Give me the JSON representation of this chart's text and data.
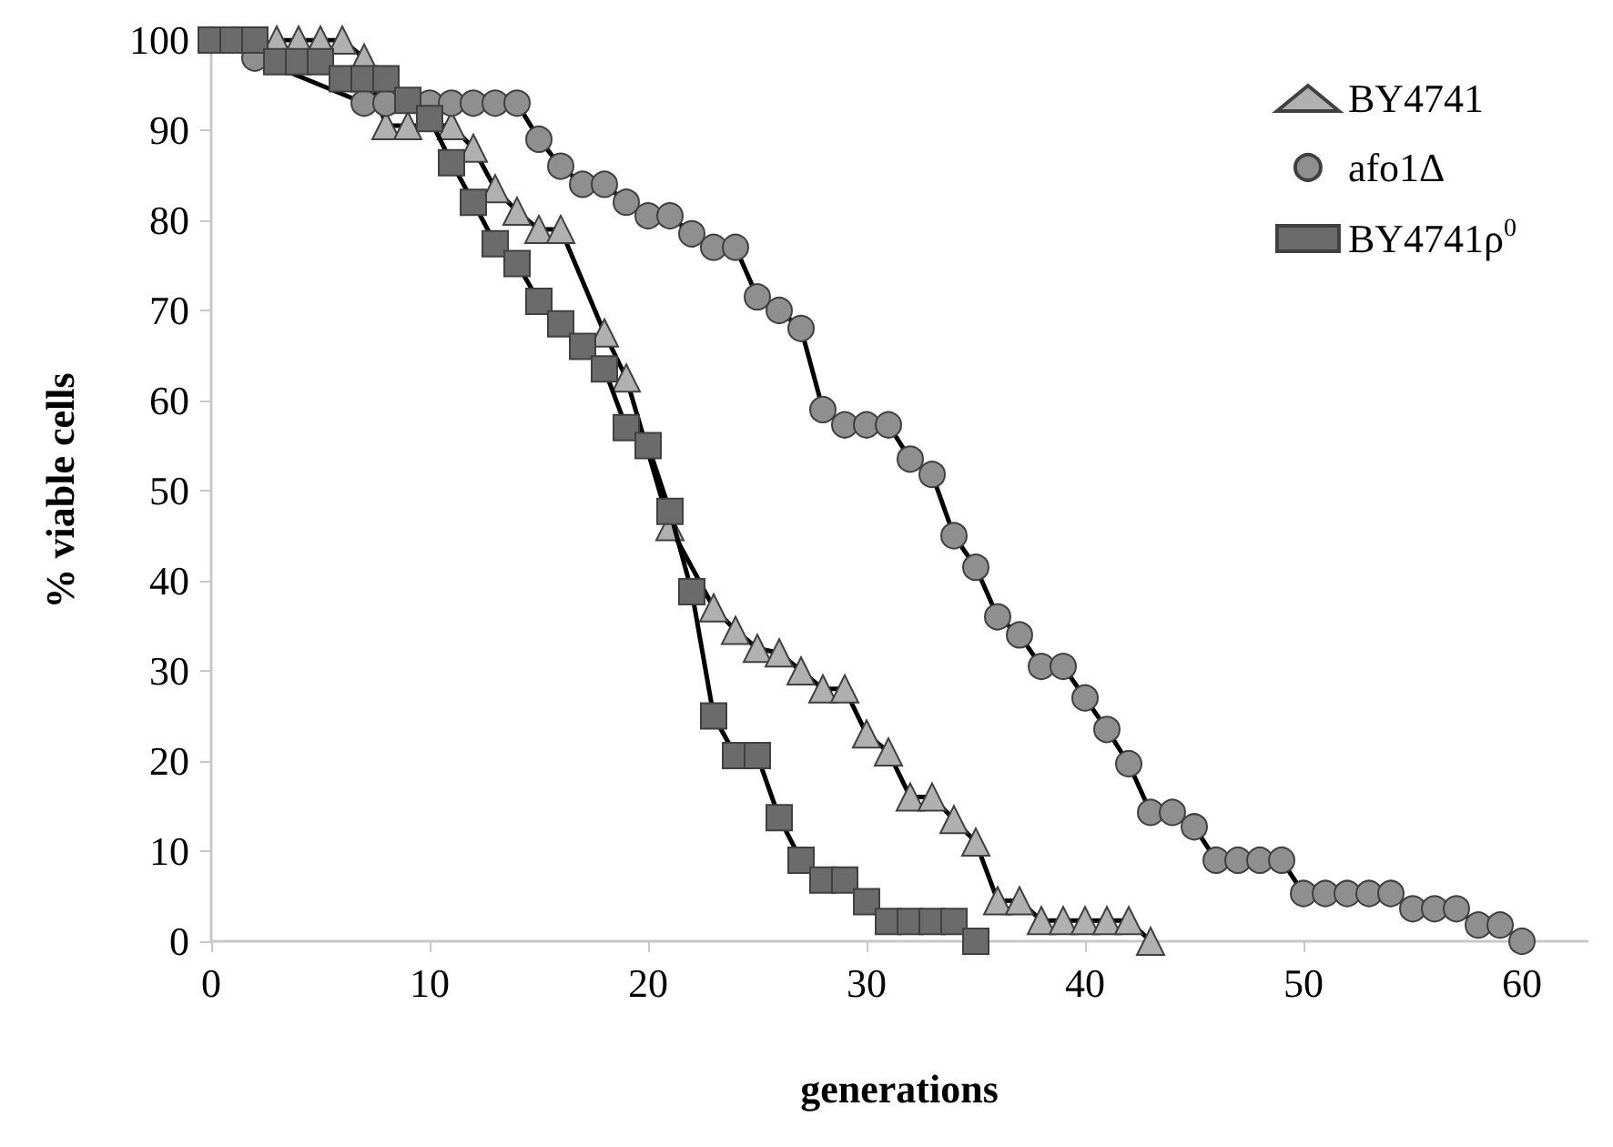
{
  "chart_data": {
    "type": "line",
    "xlabel": "generations",
    "ylabel": "% viable cells",
    "xlim": [
      0,
      63
    ],
    "xticks": [
      0,
      10,
      20,
      30,
      40,
      50,
      60
    ],
    "ylim": [
      0,
      100
    ],
    "yticks": [
      0,
      10,
      20,
      30,
      40,
      50,
      60,
      70,
      80,
      90,
      100
    ],
    "grid": false,
    "legend": "top right",
    "line_style": "solid",
    "series": [
      {
        "name": "BY4741",
        "color": "#b0b0b0",
        "marker": "triangle",
        "x": [
          3,
          4,
          5,
          6,
          7,
          8,
          9,
          11,
          12,
          13,
          14,
          15,
          16,
          18,
          19,
          21,
          23,
          24,
          25,
          26,
          27,
          28,
          29,
          30,
          31,
          32,
          33,
          34,
          35,
          36,
          37,
          38,
          39,
          40,
          41,
          42,
          43
        ],
        "values": [
          100,
          100,
          100,
          100,
          98,
          90.5,
          90.5,
          90.5,
          88,
          83.5,
          81,
          79,
          79,
          67.5,
          62.5,
          46,
          37,
          34.5,
          32.5,
          32,
          30,
          28,
          28,
          23,
          21,
          16,
          16,
          13.5,
          11,
          4.5,
          4.5,
          2.3,
          2.3,
          2.3,
          2.3,
          2.3,
          0
        ]
      },
      {
        "name": "afo1Δ",
        "color": "#8f8f8f",
        "marker": "circle",
        "x": [
          0,
          1,
          2,
          7,
          8,
          10,
          11,
          12,
          13,
          14,
          15,
          16,
          17,
          18,
          19,
          20,
          21,
          22,
          23,
          24,
          25,
          26,
          27,
          28,
          29,
          30,
          31,
          32,
          33,
          34,
          35,
          36,
          37,
          38,
          39,
          40,
          41,
          42,
          43,
          44,
          45,
          46,
          47,
          48,
          49,
          50,
          51,
          52,
          53,
          54,
          55,
          56,
          57,
          58,
          59,
          60
        ],
        "values": [
          100,
          100,
          98,
          93,
          93,
          93,
          93,
          93,
          93,
          93,
          89,
          86,
          84,
          84,
          82,
          80.5,
          80.5,
          78.5,
          77,
          77,
          71.5,
          70,
          68,
          59,
          57.3,
          57.3,
          57.3,
          53.5,
          51.8,
          45,
          41.5,
          36,
          34,
          30.5,
          30.5,
          27,
          23.5,
          19.7,
          14.3,
          14.3,
          12.7,
          9,
          9,
          9,
          9,
          5.3,
          5.3,
          5.3,
          5.3,
          5.3,
          3.6,
          3.6,
          3.6,
          1.8,
          1.8,
          0
        ]
      },
      {
        "name": "BY4741ρ$^{0}$",
        "color": "#6b6b6b",
        "marker": "square",
        "x": [
          0,
          1,
          2,
          3,
          4,
          5,
          6,
          7,
          8,
          9,
          10,
          11,
          12,
          13,
          14,
          15,
          16,
          17,
          18,
          19,
          20,
          21,
          22,
          23,
          24,
          25,
          26,
          27,
          28,
          29,
          30,
          31,
          32,
          33,
          34,
          35
        ],
        "values": [
          100,
          100,
          100,
          97.6,
          97.6,
          97.6,
          95.7,
          95.7,
          95.7,
          93.3,
          91.3,
          86.4,
          82,
          77.4,
          75.2,
          71,
          68.5,
          66,
          63.5,
          57,
          55,
          47.7,
          38.8,
          25,
          20.6,
          20.6,
          13.7,
          9,
          6.8,
          6.8,
          4.4,
          2.2,
          2.2,
          2.2,
          2.2,
          0
        ]
      }
    ]
  }
}
